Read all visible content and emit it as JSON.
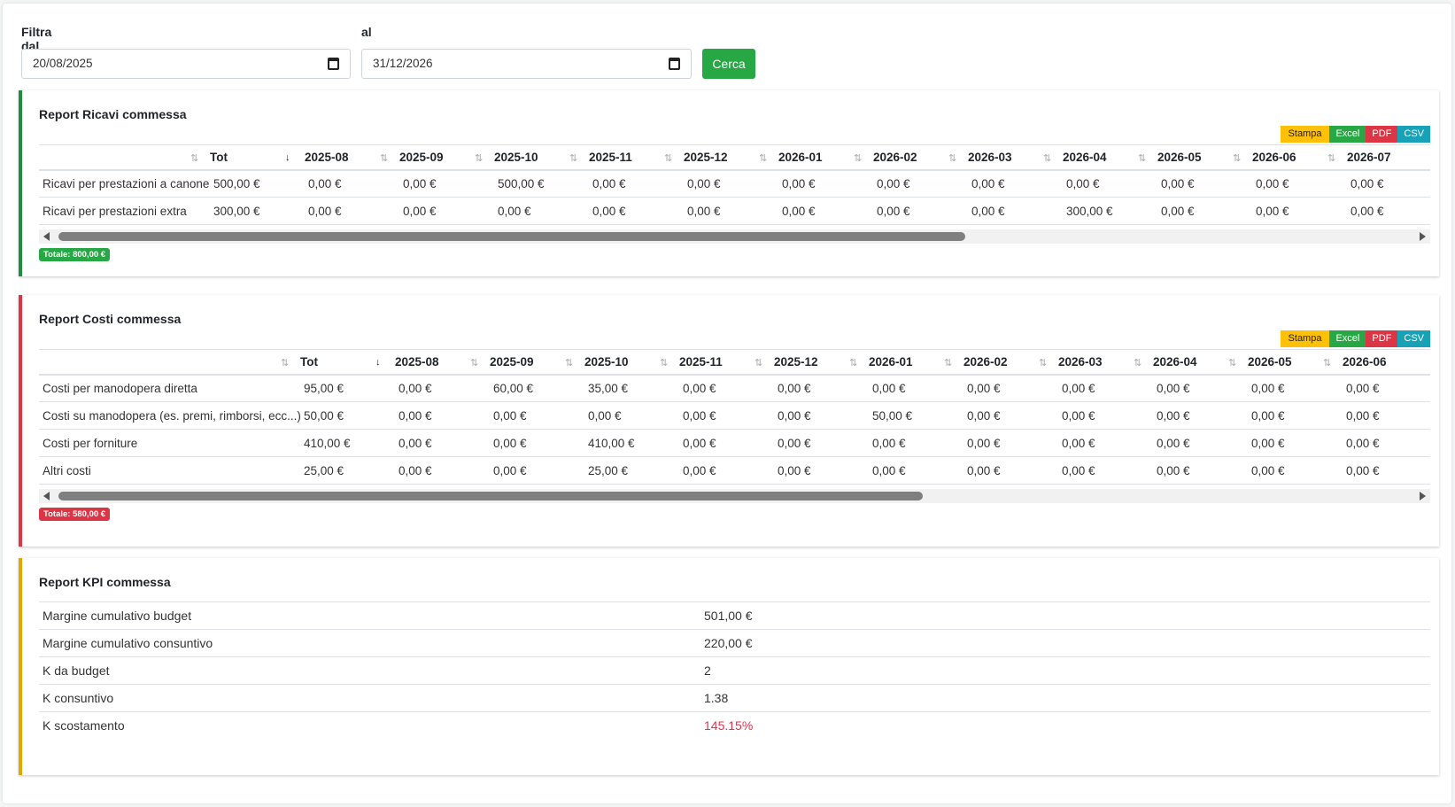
{
  "filters": {
    "from_label": "Filtra dal",
    "from_value": "20/08/2025",
    "to_label": "al",
    "to_value": "31/12/2026",
    "search_label": "Cerca"
  },
  "exports": {
    "stampa": "Stampa",
    "excel": "Excel",
    "pdf": "PDF",
    "csv": "CSV"
  },
  "ricavi": {
    "title": "Report Ricavi commessa",
    "columns": [
      "Tot",
      "2025-08",
      "2025-09",
      "2025-10",
      "2025-11",
      "2025-12",
      "2026-01",
      "2026-02",
      "2026-03",
      "2026-04",
      "2026-05",
      "2026-06",
      "2026-07"
    ],
    "rows": [
      {
        "label": "Ricavi per prestazioni a canone",
        "values": [
          "500,00 €",
          "0,00 €",
          "0,00 €",
          "500,00 €",
          "0,00 €",
          "0,00 €",
          "0,00 €",
          "0,00 €",
          "0,00 €",
          "0,00 €",
          "0,00 €",
          "0,00 €",
          "0,00 €"
        ]
      },
      {
        "label": "Ricavi per prestazioni extra",
        "values": [
          "300,00 €",
          "0,00 €",
          "0,00 €",
          "0,00 €",
          "0,00 €",
          "0,00 €",
          "0,00 €",
          "0,00 €",
          "0,00 €",
          "300,00 €",
          "0,00 €",
          "0,00 €",
          "0,00 €"
        ]
      }
    ],
    "total": "Totale: 800,00 €"
  },
  "costi": {
    "title": "Report Costi commessa",
    "columns": [
      "Tot",
      "2025-08",
      "2025-09",
      "2025-10",
      "2025-11",
      "2025-12",
      "2026-01",
      "2026-02",
      "2026-03",
      "2026-04",
      "2026-05",
      "2026-06"
    ],
    "rows": [
      {
        "label": "Costi per manodopera diretta",
        "values": [
          "95,00 €",
          "0,00 €",
          "60,00 €",
          "35,00 €",
          "0,00 €",
          "0,00 €",
          "0,00 €",
          "0,00 €",
          "0,00 €",
          "0,00 €",
          "0,00 €",
          "0,00 €"
        ]
      },
      {
        "label": "Costi su manodopera (es. premi, rimborsi, ecc...)",
        "values": [
          "50,00 €",
          "0,00 €",
          "0,00 €",
          "0,00 €",
          "0,00 €",
          "0,00 €",
          "50,00 €",
          "0,00 €",
          "0,00 €",
          "0,00 €",
          "0,00 €",
          "0,00 €"
        ]
      },
      {
        "label": "Costi per forniture",
        "values": [
          "410,00 €",
          "0,00 €",
          "0,00 €",
          "410,00 €",
          "0,00 €",
          "0,00 €",
          "0,00 €",
          "0,00 €",
          "0,00 €",
          "0,00 €",
          "0,00 €",
          "0,00 €"
        ]
      },
      {
        "label": "Altri costi",
        "values": [
          "25,00 €",
          "0,00 €",
          "0,00 €",
          "25,00 €",
          "0,00 €",
          "0,00 €",
          "0,00 €",
          "0,00 €",
          "0,00 €",
          "0,00 €",
          "0,00 €",
          "0,00 €"
        ]
      }
    ],
    "total": "Totale: 580,00 €"
  },
  "kpi": {
    "title": "Report KPI commessa",
    "rows": [
      {
        "label": "Margine cumulativo budget",
        "value": "501,00 €",
        "negative": false
      },
      {
        "label": "Margine cumulativo consuntivo",
        "value": "220,00 €",
        "negative": false
      },
      {
        "label": "K da budget",
        "value": "2",
        "negative": false
      },
      {
        "label": "K consuntivo",
        "value": "1.38",
        "negative": false
      },
      {
        "label": "K scostamento",
        "value": "145.15%",
        "negative": true
      }
    ],
    "negative_color": "#e0344c"
  },
  "colors": {
    "revenue": "#1e8e3e",
    "cost": "#dc3545",
    "kpi": "#e0a800",
    "button": "#28a745"
  }
}
